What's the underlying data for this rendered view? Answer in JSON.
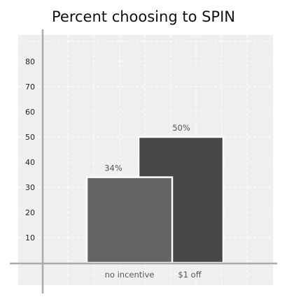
{
  "chart_data": {
    "type": "bar",
    "title": "Percent choosing to SPIN",
    "categories": [
      "no incentive",
      "$1 off"
    ],
    "values": [
      34,
      50
    ],
    "value_labels": [
      "34%",
      "50%"
    ],
    "yticks": [
      "10",
      "20",
      "30",
      "40",
      "50",
      "60",
      "70",
      "80"
    ],
    "ylim": [
      0,
      90
    ],
    "xlabel": "",
    "ylabel": "",
    "grid": true,
    "colors": {
      "bars": [
        "#646464",
        "#474747"
      ],
      "plot_background": "#efefef",
      "grid": "#ffffff",
      "axis": "#aaaaaa"
    }
  }
}
